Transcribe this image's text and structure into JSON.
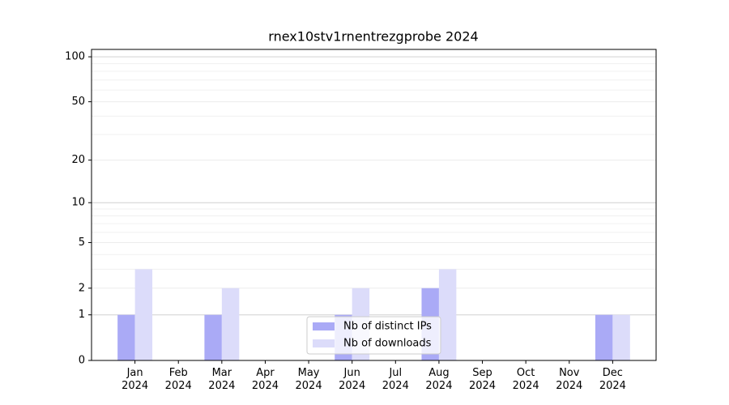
{
  "chart_data": {
    "type": "bar",
    "title": "rnex10stv1rnentrezgprobe 2024",
    "categories": [
      "Jan\n2024",
      "Feb\n2024",
      "Mar\n2024",
      "Apr\n2024",
      "May\n2024",
      "Jun\n2024",
      "Jul\n2024",
      "Aug\n2024",
      "Sep\n2024",
      "Oct\n2024",
      "Nov\n2024",
      "Dec\n2024"
    ],
    "series": [
      {
        "name": "Nb of distinct IPs",
        "color": "#aaaaf6",
        "values": [
          1,
          0,
          1,
          0,
          0,
          1,
          0,
          2,
          0,
          0,
          0,
          1
        ]
      },
      {
        "name": "Nb of downloads",
        "color": "#dcdcfa",
        "values": [
          3,
          0,
          2,
          0,
          0,
          2,
          0,
          3,
          0,
          0,
          0,
          1
        ]
      }
    ],
    "yscale": "log1p",
    "ylim": [
      0,
      112
    ],
    "yticks": [
      0,
      1,
      2,
      5,
      10,
      20,
      50,
      100
    ],
    "yminor": [
      3,
      4,
      6,
      7,
      8,
      9,
      30,
      40,
      60,
      70,
      80,
      90
    ],
    "grid": true,
    "legend": "lower center"
  }
}
